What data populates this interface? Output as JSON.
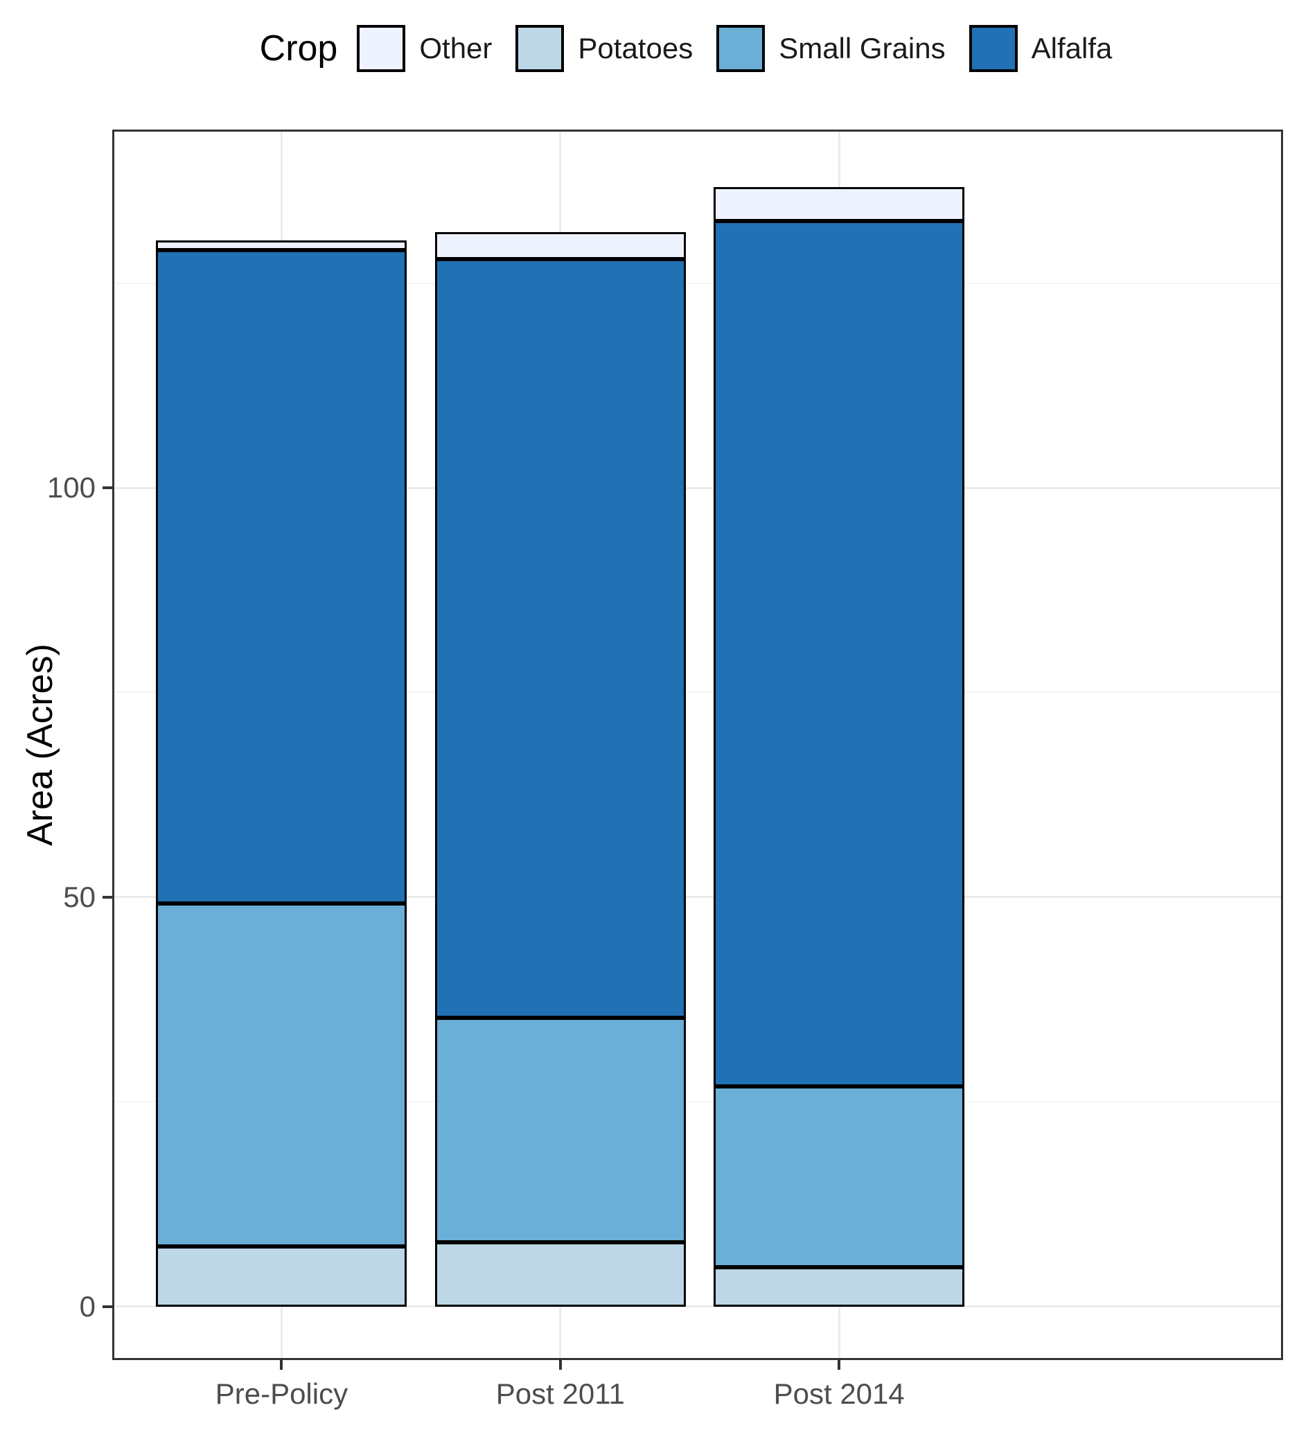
{
  "legend": {
    "title": "Crop",
    "items": [
      {
        "label": "Other",
        "color": "#EFF3FF"
      },
      {
        "label": "Potatoes",
        "color": "#BDD7E7"
      },
      {
        "label": "Small Grains",
        "color": "#6BAED6"
      },
      {
        "label": "Alfalfa",
        "color": "#2171B5"
      }
    ]
  },
  "chart_data": {
    "type": "bar",
    "stacked": true,
    "title": "",
    "xlabel": "",
    "ylabel": "Area (Acres)",
    "categories": [
      "Pre-Policy",
      "Post 2011",
      "Post 2014"
    ],
    "ylim": [
      -6.8,
      143.5
    ],
    "yticks_major": [
      0,
      50,
      100
    ],
    "yticks_minor": [
      25,
      75,
      125
    ],
    "grid": true,
    "legend_position": "top",
    "bar_width_fraction": 0.9,
    "bar_outline_color": "#000000",
    "stack_order_bottom_to_top": [
      "Potatoes",
      "Small Grains",
      "Alfalfa",
      "Other"
    ],
    "series": [
      {
        "name": "Potatoes",
        "color": "#BDD7E7",
        "values": [
          7.3,
          7.8,
          4.8
        ]
      },
      {
        "name": "Small Grains",
        "color": "#6BAED6",
        "values": [
          41.9,
          27.5,
          22.1
        ]
      },
      {
        "name": "Alfalfa",
        "color": "#2171B5",
        "values": [
          79.8,
          92.6,
          105.7
        ]
      },
      {
        "name": "Other",
        "color": "#EFF3FF",
        "values": [
          1.2,
          3.3,
          4.1
        ]
      }
    ],
    "totals": [
      130.2,
      131.2,
      136.7
    ]
  }
}
